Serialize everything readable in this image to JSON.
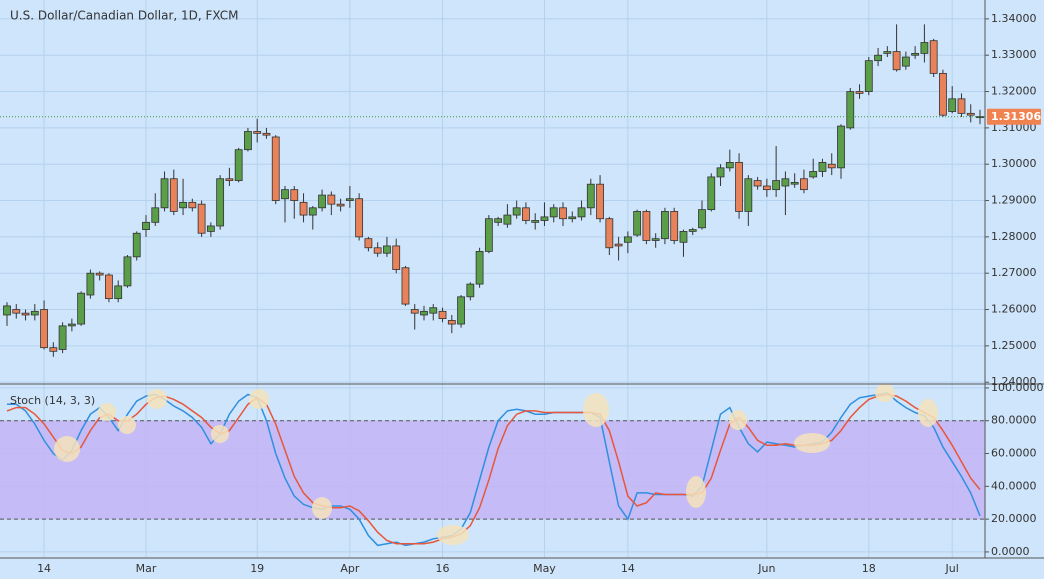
{
  "chart_data": [
    {
      "type": "candlestick",
      "title": "U.S. Dollar/Canadian Dollar, 1D, FXCM",
      "categories": [
        null,
        null,
        null,
        null,
        "14",
        null,
        null,
        null,
        null,
        null,
        null,
        null,
        null,
        null,
        null,
        "Mar",
        null,
        null,
        null,
        null,
        null,
        null,
        null,
        null,
        null,
        null,
        null,
        "19",
        null,
        null,
        null,
        null,
        null,
        null,
        null,
        null,
        null,
        "Apr",
        null,
        null,
        null,
        null,
        null,
        null,
        null,
        null,
        null,
        "16",
        null,
        null,
        null,
        null,
        null,
        null,
        null,
        null,
        null,
        null,
        "May",
        null,
        null,
        null,
        null,
        null,
        null,
        null,
        null,
        "14",
        null,
        null,
        null,
        null,
        null,
        null,
        null,
        null,
        null,
        null,
        null,
        null,
        null,
        null,
        "Jun",
        null,
        null,
        null,
        null,
        null,
        null,
        null,
        null,
        null,
        null,
        "18",
        null,
        null,
        null,
        null,
        null,
        null,
        null,
        null,
        "Jul",
        null,
        null,
        null
      ],
      "open": [
        1.2585,
        1.26,
        1.259,
        1.2585,
        1.26,
        1.2495,
        1.249,
        1.2555,
        1.256,
        1.264,
        1.27,
        1.2695,
        1.263,
        1.2665,
        1.2745,
        1.282,
        1.284,
        1.288,
        1.296,
        1.288,
        1.2895,
        1.289,
        1.2815,
        1.283,
        1.296,
        1.2955,
        1.304,
        1.309,
        1.3085,
        1.3075,
        1.2905,
        1.293,
        1.2895,
        1.286,
        1.288,
        1.2915,
        1.289,
        1.29,
        1.2905,
        1.2795,
        1.277,
        1.2755,
        1.2775,
        1.2715,
        1.26,
        1.2585,
        1.259,
        1.2595,
        1.257,
        1.256,
        1.2635,
        1.267,
        1.276,
        1.284,
        1.2835,
        1.286,
        1.288,
        1.284,
        1.2845,
        1.2855,
        1.288,
        1.285,
        1.2855,
        1.288,
        1.2945,
        1.285,
        1.278,
        1.2785,
        1.2805,
        1.287,
        1.279,
        1.2795,
        1.287,
        1.2785,
        1.2815,
        1.2825,
        1.2875,
        1.2965,
        1.299,
        1.3005,
        1.287,
        1.2955,
        1.294,
        1.293,
        1.294,
        1.2945,
        1.296,
        1.2965,
        1.298,
        1.3,
        1.299,
        1.31,
        1.32,
        1.32,
        1.3285,
        1.3305,
        1.331,
        1.327,
        1.33,
        1.3305,
        1.334,
        1.325,
        1.3145,
        1.318,
        1.314,
        1.313
      ],
      "high": [
        1.262,
        1.2615,
        1.26,
        1.2615,
        1.2625,
        1.251,
        1.2565,
        1.2575,
        1.265,
        1.271,
        1.2705,
        1.27,
        1.268,
        1.275,
        1.2815,
        1.286,
        1.292,
        1.298,
        1.2985,
        1.296,
        1.2905,
        1.29,
        1.284,
        1.297,
        1.299,
        1.3045,
        1.31,
        1.3125,
        1.31,
        1.308,
        1.294,
        1.294,
        1.292,
        1.2885,
        1.293,
        1.2925,
        1.2905,
        1.294,
        1.292,
        1.28,
        1.2785,
        1.28,
        1.2795,
        1.272,
        1.2615,
        1.261,
        1.2615,
        1.2605,
        1.2585,
        1.264,
        1.2675,
        1.277,
        1.286,
        1.2855,
        1.289,
        1.29,
        1.2895,
        1.2865,
        1.2895,
        1.289,
        1.2895,
        1.287,
        1.29,
        1.296,
        1.297,
        1.2855,
        1.28,
        1.2815,
        1.2875,
        1.2875,
        1.281,
        1.288,
        1.288,
        1.282,
        1.2825,
        1.29,
        1.2975,
        1.3,
        1.304,
        1.303,
        1.297,
        1.2965,
        1.296,
        1.305,
        1.298,
        1.2975,
        1.2985,
        1.3015,
        1.3015,
        1.303,
        1.311,
        1.321,
        1.322,
        1.3295,
        1.332,
        1.3325,
        1.3385,
        1.331,
        1.3325,
        1.3385,
        1.3345,
        1.326,
        1.3215,
        1.3195,
        1.3165,
        1.315
      ],
      "low": [
        1.2555,
        1.2575,
        1.257,
        1.257,
        1.249,
        1.247,
        1.248,
        1.254,
        1.2555,
        1.263,
        1.268,
        1.262,
        1.262,
        1.266,
        1.2735,
        1.28,
        1.283,
        1.287,
        1.286,
        1.286,
        1.287,
        1.28,
        1.28,
        1.282,
        1.294,
        1.295,
        1.3035,
        1.306,
        1.307,
        1.289,
        1.284,
        1.285,
        1.284,
        1.282,
        1.287,
        1.286,
        1.287,
        1.288,
        1.279,
        1.276,
        1.2745,
        1.2745,
        1.27,
        1.261,
        1.2545,
        1.257,
        1.257,
        1.2565,
        1.2535,
        1.255,
        1.2625,
        1.266,
        1.2755,
        1.283,
        1.2825,
        1.285,
        1.2835,
        1.282,
        1.283,
        1.284,
        1.283,
        1.284,
        1.2845,
        1.286,
        1.284,
        1.275,
        1.2735,
        1.2755,
        1.28,
        1.278,
        1.277,
        1.278,
        1.278,
        1.2745,
        1.2805,
        1.282,
        1.287,
        1.294,
        1.298,
        1.285,
        1.283,
        1.293,
        1.291,
        1.291,
        1.286,
        1.2935,
        1.292,
        1.296,
        1.2965,
        1.297,
        1.296,
        1.3095,
        1.318,
        1.319,
        1.327,
        1.3295,
        1.3255,
        1.326,
        1.329,
        1.328,
        1.324,
        1.313,
        1.314,
        1.313,
        1.3115,
        1.311
      ],
      "close": [
        1.261,
        1.259,
        1.2585,
        1.2595,
        1.2495,
        1.2485,
        1.2555,
        1.256,
        1.2645,
        1.27,
        1.2695,
        1.263,
        1.2665,
        1.2745,
        1.281,
        1.284,
        1.288,
        1.296,
        1.287,
        1.2895,
        1.288,
        1.281,
        1.283,
        1.296,
        1.2955,
        1.304,
        1.309,
        1.3085,
        1.308,
        1.29,
        1.293,
        1.29,
        1.286,
        1.288,
        1.2915,
        1.289,
        1.2885,
        1.2905,
        1.28,
        1.277,
        1.2755,
        1.2775,
        1.271,
        1.2615,
        1.259,
        1.2595,
        1.2605,
        1.2575,
        1.256,
        1.2635,
        1.267,
        1.276,
        1.285,
        1.285,
        1.286,
        1.288,
        1.2845,
        1.2845,
        1.2855,
        1.288,
        1.285,
        1.2855,
        1.288,
        1.2945,
        1.285,
        1.277,
        1.2775,
        1.28,
        1.287,
        1.279,
        1.2795,
        1.287,
        1.279,
        1.2815,
        1.282,
        1.2875,
        1.2965,
        1.299,
        1.3005,
        1.287,
        1.296,
        1.294,
        1.293,
        1.2955,
        1.296,
        1.295,
        1.293,
        1.298,
        1.3005,
        1.299,
        1.3105,
        1.32,
        1.3195,
        1.3285,
        1.33,
        1.331,
        1.326,
        1.3295,
        1.3305,
        1.3335,
        1.325,
        1.3135,
        1.318,
        1.314,
        1.3135,
        1.3131
      ],
      "up_color": "#5a9e4a",
      "down_color": "#e8825a",
      "last_price": 1.31306,
      "last_price_color": "#f0824f",
      "ylim": [
        1.2395,
        1.3452
      ],
      "yticks": [
        {
          "value": 1.24,
          "label": "1.24000"
        },
        {
          "value": 1.25,
          "label": "1.25000"
        },
        {
          "value": 1.26,
          "label": "1.26000"
        },
        {
          "value": 1.27,
          "label": "1.27000"
        },
        {
          "value": 1.28,
          "label": "1.28000"
        },
        {
          "value": 1.29,
          "label": "1.29000"
        },
        {
          "value": 1.3,
          "label": "1.30000"
        },
        {
          "value": 1.31,
          "label": "1.31000"
        },
        {
          "value": 1.32,
          "label": "1.32000"
        },
        {
          "value": 1.33,
          "label": "1.33000"
        },
        {
          "value": 1.34,
          "label": "1.34000"
        }
      ],
      "grid": true
    },
    {
      "type": "line",
      "title": "Stoch (14, 3, 3)",
      "series": [
        {
          "color": "#2f8fe0",
          "values": [
            90,
            90,
            86,
            78,
            68,
            60,
            56,
            62,
            74,
            84,
            88,
            82,
            74,
            84,
            92,
            95,
            96,
            93,
            89,
            86,
            82,
            76,
            66,
            72,
            84,
            92,
            96,
            94,
            80,
            60,
            45,
            34,
            29,
            27,
            26,
            28,
            28,
            26,
            20,
            10,
            4,
            5,
            6,
            4,
            5,
            6,
            8,
            9,
            10,
            14,
            24,
            44,
            64,
            80,
            86,
            87,
            86,
            84,
            84,
            85,
            85,
            85,
            85,
            85,
            82,
            55,
            28,
            20,
            36,
            36,
            35,
            35,
            35,
            35,
            34,
            40,
            62,
            84,
            88,
            76,
            66,
            61,
            67,
            66,
            65,
            64,
            65,
            66,
            67,
            73,
            82,
            90,
            94,
            95,
            96,
            97,
            92,
            88,
            85,
            83,
            76,
            64,
            55,
            46,
            36,
            22
          ]
        },
        {
          "color": "#e8563a",
          "values": [
            86,
            88,
            88,
            84,
            78,
            70,
            62,
            60,
            64,
            74,
            82,
            84,
            80,
            80,
            84,
            90,
            94,
            95,
            93,
            90,
            86,
            82,
            76,
            72,
            74,
            82,
            90,
            94,
            90,
            78,
            62,
            46,
            36,
            30,
            28,
            27,
            27,
            28,
            25,
            19,
            12,
            7,
            5,
            5,
            5,
            5,
            6,
            8,
            9,
            11,
            16,
            27,
            44,
            63,
            77,
            84,
            86,
            86,
            85,
            85,
            85,
            85,
            85,
            85,
            84,
            74,
            55,
            34,
            28,
            30,
            36,
            35,
            35,
            35,
            35,
            36,
            45,
            62,
            78,
            82,
            76,
            68,
            65,
            65,
            66,
            65,
            65,
            65,
            66,
            68,
            74,
            82,
            88,
            93,
            95,
            96,
            95,
            92,
            88,
            85,
            82,
            74,
            65,
            55,
            45,
            38
          ]
        }
      ],
      "bands": [
        20,
        80
      ],
      "band_color": "#c3b4f4",
      "ylim": [
        -3.7,
        102.4
      ],
      "yticks": [
        {
          "value": 0,
          "label": "0.0000"
        },
        {
          "value": 20,
          "label": "20.0000"
        },
        {
          "value": 40,
          "label": "40.0000"
        },
        {
          "value": 60,
          "label": "60.0000"
        },
        {
          "value": 80,
          "label": "80.0000"
        },
        {
          "value": 100,
          "label": "100.0000"
        }
      ],
      "grid": true
    }
  ]
}
